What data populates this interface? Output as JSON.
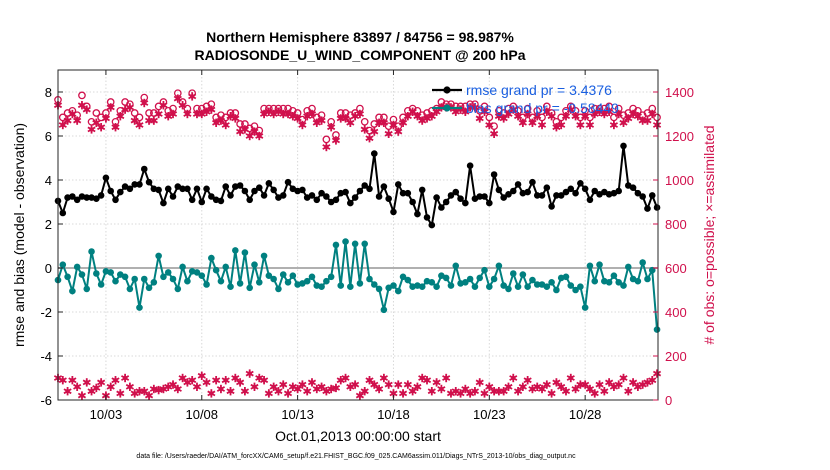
{
  "chart_data": {
    "type": "line",
    "title": "Northern Hemisphere 83897 / 84756 = 98.987%",
    "subtitle": "RADIOSONDE_U_WIND_COMPONENT @ 200 hPa",
    "xlabel": "Oct.01,2013 00:00:00 start",
    "ylabel": "rmse and bias (model - observation)",
    "ylabel_right": "# of obs: o=possible; ×=assimilated",
    "xlim": [
      0.5,
      31.8
    ],
    "ylim": [
      -6,
      9
    ],
    "ylim_right": [
      0,
      1500
    ],
    "x_tick_labels": [
      "10/03",
      "10/08",
      "10/13",
      "10/18",
      "10/23",
      "10/28"
    ],
    "x_tick_values": [
      3,
      8,
      13,
      18,
      23,
      28
    ],
    "y_tick_values": [
      -6,
      -4,
      -2,
      0,
      2,
      4,
      6,
      8
    ],
    "y_tick_labels": [
      "-6",
      "-4",
      "-2",
      "0",
      "2",
      "4",
      "6",
      "8"
    ],
    "y_right_tick_values": [
      0,
      200,
      400,
      600,
      800,
      1000,
      1200,
      1400
    ],
    "y_right_tick_labels": [
      "0",
      "200",
      "400",
      "600",
      "800",
      "1000",
      "1200",
      "1400"
    ],
    "grid": true,
    "legend": [
      {
        "label": "rmse grand pr = 3.4376",
        "color": "#000000"
      },
      {
        "label": "bias grand pr = -0.58449",
        "color": "#008080"
      }
    ],
    "legend_location": "top-right",
    "x_start": 0.5,
    "x_step": 0.25,
    "series": [
      {
        "name": "rmse",
        "color": "#000000",
        "marker": "filled-circle",
        "values": [
          3.05,
          2.5,
          3.2,
          3.25,
          3.1,
          3.25,
          3.2,
          3.2,
          3.15,
          3.3,
          4.1,
          3.5,
          3.1,
          3.45,
          3.7,
          3.6,
          3.8,
          3.8,
          4.5,
          3.9,
          3.6,
          3.55,
          2.95,
          3.6,
          3.25,
          3.7,
          3.6,
          3.6,
          3.1,
          3.6,
          3.0,
          3.6,
          3.25,
          3.1,
          3.05,
          3.7,
          3.3,
          3.7,
          3.75,
          3.5,
          3.1,
          3.5,
          3.65,
          3.3,
          3.85,
          3.55,
          3.2,
          3.3,
          3.9,
          3.6,
          3.5,
          3.55,
          3.2,
          3.3,
          3.1,
          3.4,
          3.25,
          3.0,
          3.1,
          3.4,
          3.45,
          2.95,
          3.2,
          3.5,
          3.75,
          3.6,
          5.2,
          3.25,
          3.7,
          3.15,
          2.55,
          3.8,
          3.4,
          3.4,
          3.0,
          2.45,
          3.55,
          2.3,
          1.95,
          3.2,
          2.75,
          3.0,
          3.3,
          3.45,
          3.15,
          2.95,
          4.65,
          3.15,
          3.25,
          3.25,
          2.95,
          4.25,
          3.55,
          3.2,
          3.35,
          3.5,
          3.8,
          3.4,
          3.45,
          3.9,
          3.3,
          3.3,
          3.65,
          2.8,
          3.3,
          3.3,
          3.45,
          3.6,
          3.4,
          3.85,
          3.6,
          3.1,
          3.5,
          3.35,
          3.45,
          3.35,
          3.4,
          3.5,
          5.55,
          3.75,
          3.65,
          3.4,
          3.25,
          2.7,
          3.3,
          2.75,
          3.4,
          3.55
        ]
      },
      {
        "name": "bias",
        "color": "#008080",
        "marker": "filled-circle",
        "values": [
          -0.55,
          0.15,
          -0.4,
          -1.05,
          0.05,
          -0.3,
          -0.95,
          0.75,
          -0.25,
          -0.75,
          -0.15,
          -0.2,
          -0.6,
          -0.3,
          -0.4,
          -0.95,
          -0.5,
          -1.8,
          -0.5,
          -0.9,
          -0.65,
          0.55,
          -0.4,
          -0.2,
          -0.5,
          -0.95,
          0.05,
          -0.6,
          -0.15,
          -0.2,
          -0.35,
          -0.75,
          0.45,
          -0.1,
          -0.6,
          0.05,
          -0.85,
          0.8,
          -0.7,
          0.7,
          -0.9,
          0.15,
          -0.65,
          0.55,
          -0.35,
          -0.5,
          -0.95,
          -0.3,
          -0.65,
          -0.35,
          -0.75,
          -0.7,
          -0.6,
          -0.4,
          -0.8,
          -0.85,
          -0.6,
          -0.4,
          1.05,
          -0.8,
          1.2,
          -0.85,
          1.1,
          -0.7,
          1.1,
          -0.5,
          -0.75,
          -0.95,
          -1.9,
          -0.9,
          -0.8,
          -1.05,
          -0.4,
          -0.55,
          -0.85,
          -0.8,
          -0.85,
          -0.6,
          -0.65,
          -0.85,
          -0.35,
          -0.45,
          -0.8,
          0.1,
          -0.7,
          -0.65,
          -0.5,
          -0.85,
          -0.45,
          -0.1,
          -0.85,
          -0.5,
          0.1,
          -0.8,
          -0.95,
          -0.25,
          -0.85,
          -0.3,
          -0.85,
          -0.55,
          -0.75,
          -0.75,
          -0.85,
          -0.65,
          -1.0,
          -0.45,
          -0.4,
          -0.8,
          -1.0,
          -0.85,
          -1.8,
          0.1,
          -0.6,
          0.15,
          -0.6,
          -0.65,
          -0.35,
          -0.65,
          -0.8,
          0.05,
          -0.5,
          -0.6,
          0.25,
          -0.5,
          -0.1,
          -2.8,
          -0.55,
          -0.6,
          -0.6,
          -0.5,
          -0.45,
          -0.55,
          -0.15
        ]
      },
      {
        "name": "obs assimilated (×)",
        "color": "#d0104c",
        "marker": "star",
        "axis": "right",
        "values": [
          1340,
          1250,
          1270,
          1300,
          1270,
          1340,
          1320,
          1230,
          1260,
          1240,
          1280,
          1330,
          1240,
          1290,
          1320,
          1330,
          1270,
          1250,
          1350,
          1270,
          1270,
          1300,
          1340,
          1290,
          1300,
          1370,
          1340,
          1300,
          1380,
          1300,
          1300,
          1310,
          1320,
          1260,
          1270,
          1250,
          1290,
          1280,
          1220,
          1230,
          1200,
          1220,
          1200,
          1300,
          1310,
          1300,
          1310,
          1300,
          1300,
          1290,
          1280,
          1250,
          1290,
          1300,
          1260,
          1270,
          1150,
          1240,
          1180,
          1280,
          1280,
          1260,
          1290,
          1300,
          1230,
          1190,
          1220,
          1260,
          1260,
          1210,
          1250,
          1220,
          1260,
          1290,
          1310,
          1290,
          1270,
          1280,
          1290,
          1310,
          1330,
          1330,
          1330,
          1310,
          1320,
          1310,
          1330,
          1330,
          1280,
          1310,
          1250,
          1210,
          1290,
          1280,
          1300,
          1320,
          1290,
          1260,
          1300,
          1260,
          1290,
          1250,
          1310,
          1290,
          1240,
          1250,
          1290,
          1320,
          1290,
          1250,
          1290,
          1250,
          1300,
          1310,
          1300,
          1310,
          1250,
          1300,
          1260,
          1280,
          1300,
          1290,
          1270,
          1270,
          1300,
          1250,
          1260,
          1310,
          1270,
          1230
        ]
      },
      {
        "name": "obs assimilated (×) bottom",
        "color": "#d0104c",
        "marker": "star",
        "axis": "right",
        "values": [
          100,
          90,
          40,
          90,
          60,
          20,
          80,
          40,
          55,
          80,
          20,
          60,
          90,
          30,
          100,
          60,
          30,
          40,
          40,
          20,
          50,
          45,
          50,
          60,
          70,
          50,
          100,
          80,
          90,
          60,
          110,
          80,
          30,
          90,
          50,
          90,
          40,
          100,
          80,
          40,
          120,
          60,
          100,
          90,
          30,
          60,
          40,
          70,
          30,
          60,
          50,
          70,
          40,
          80,
          50,
          60,
          40,
          50,
          55,
          90,
          100,
          60,
          70,
          20,
          40,
          90,
          70,
          50,
          100,
          70,
          30,
          70,
          30,
          70,
          40,
          60,
          100,
          90,
          40,
          80,
          50,
          100,
          30,
          40,
          30,
          50,
          30,
          40,
          80,
          30,
          60,
          40,
          40,
          40,
          60,
          100,
          40,
          60,
          90,
          50,
          60,
          50,
          70,
          30,
          80,
          60,
          40,
          100,
          50,
          70,
          70,
          50,
          30,
          70,
          40,
          80,
          60,
          70,
          100,
          40,
          80,
          60,
          70,
          80,
          90,
          120,
          50,
          90,
          60,
          0
        ]
      },
      {
        "name": "obs possible (o)",
        "color": "#d0104c",
        "marker": "open-circle",
        "axis": "right",
        "values": [
          1360,
          1280,
          1300,
          1310,
          1290,
          1380,
          1330,
          1260,
          1300,
          1280,
          1300,
          1350,
          1260,
          1310,
          1350,
          1340,
          1300,
          1280,
          1370,
          1300,
          1300,
          1330,
          1350,
          1310,
          1320,
          1390,
          1350,
          1320,
          1390,
          1320,
          1320,
          1330,
          1340,
          1280,
          1290,
          1280,
          1300,
          1300,
          1250,
          1250,
          1230,
          1240,
          1220,
          1320,
          1320,
          1320,
          1320,
          1320,
          1320,
          1310,
          1300,
          1270,
          1310,
          1320,
          1280,
          1290,
          1180,
          1260,
          1200,
          1300,
          1300,
          1290,
          1300,
          1320,
          1260,
          1220,
          1250,
          1280,
          1280,
          1240,
          1270,
          1240,
          1280,
          1310,
          1320,
          1310,
          1290,
          1300,
          1310,
          1320,
          1350,
          1340,
          1340,
          1330,
          1330,
          1330,
          1340,
          1340,
          1310,
          1330,
          1280,
          1240,
          1310,
          1300,
          1320,
          1330,
          1310,
          1280,
          1320,
          1280,
          1310,
          1280,
          1330,
          1300,
          1260,
          1280,
          1310,
          1330,
          1310,
          1280,
          1310,
          1280,
          1320,
          1320,
          1320,
          1330,
          1280,
          1320,
          1290,
          1300,
          1320,
          1310,
          1290,
          1300,
          1320,
          1280,
          1280,
          1330,
          1290,
          1260
        ]
      }
    ],
    "footnote": "data file: /Users/raeder/DAI/ATM_forcXX/CAM6_setup/f.e21.FHIST_BGC.f09_025.CAM6assim.011/Diags_NTrS_2013-10/obs_diag_output.nc"
  }
}
